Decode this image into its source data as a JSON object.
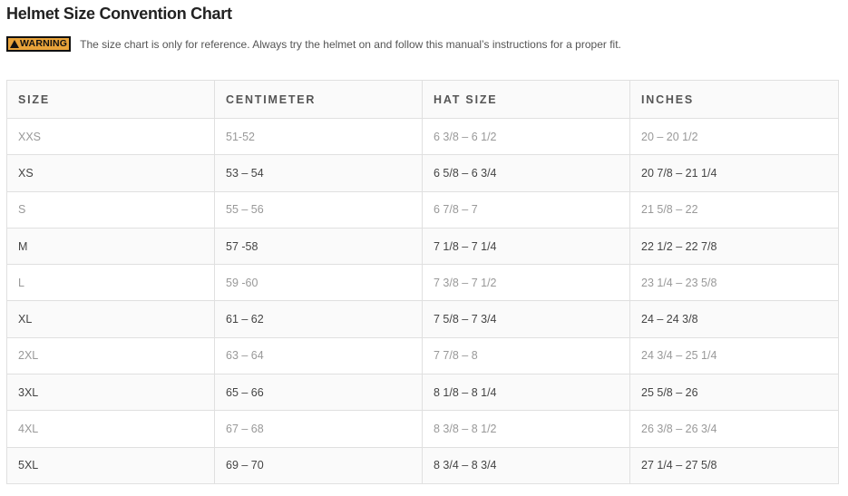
{
  "title": "Helmet Size Convention Chart",
  "warning": {
    "badge_label": "WARNING",
    "badge_color": "#e8a33a",
    "text": "The size chart is only for reference. Always try the helmet on and follow this manual’s instructions for a proper fit."
  },
  "table": {
    "headers": [
      "SIZE",
      "CENTIMETER",
      "HAT SIZE",
      "INCHES"
    ],
    "rows": [
      [
        "XXS",
        "51-52",
        "6 3/8 – 6 1/2",
        "20 – 20 1/2"
      ],
      [
        "XS",
        "53 – 54",
        "6 5/8 – 6 3/4",
        "20 7/8 – 21 1/4"
      ],
      [
        "S",
        "55 – 56",
        "6 7/8 – 7",
        "21 5/8 – 22"
      ],
      [
        "M",
        "57 -58",
        "7 1/8 – 7 1/4",
        "22 1/2 – 22 7/8"
      ],
      [
        "L",
        "59 -60",
        "7 3/8 – 7 1/2",
        "23 1/4 – 23 5/8"
      ],
      [
        "XL",
        "61 – 62",
        "7 5/8 – 7 3/4",
        "24 – 24 3/8"
      ],
      [
        "2XL",
        "63 – 64",
        "7 7/8 – 8",
        "24 3/4 – 25 1/4"
      ],
      [
        "3XL",
        "65 – 66",
        "8 1/8 – 8 1/4",
        "25 5/8 – 26"
      ],
      [
        "4XL",
        "67 – 68",
        "8 3/8 – 8 1/2",
        "26 3/8 – 26 3/4"
      ],
      [
        "5XL",
        "69 – 70",
        "8 3/4 – 8 3/4",
        "27 1/4 – 27 5/8"
      ]
    ]
  }
}
